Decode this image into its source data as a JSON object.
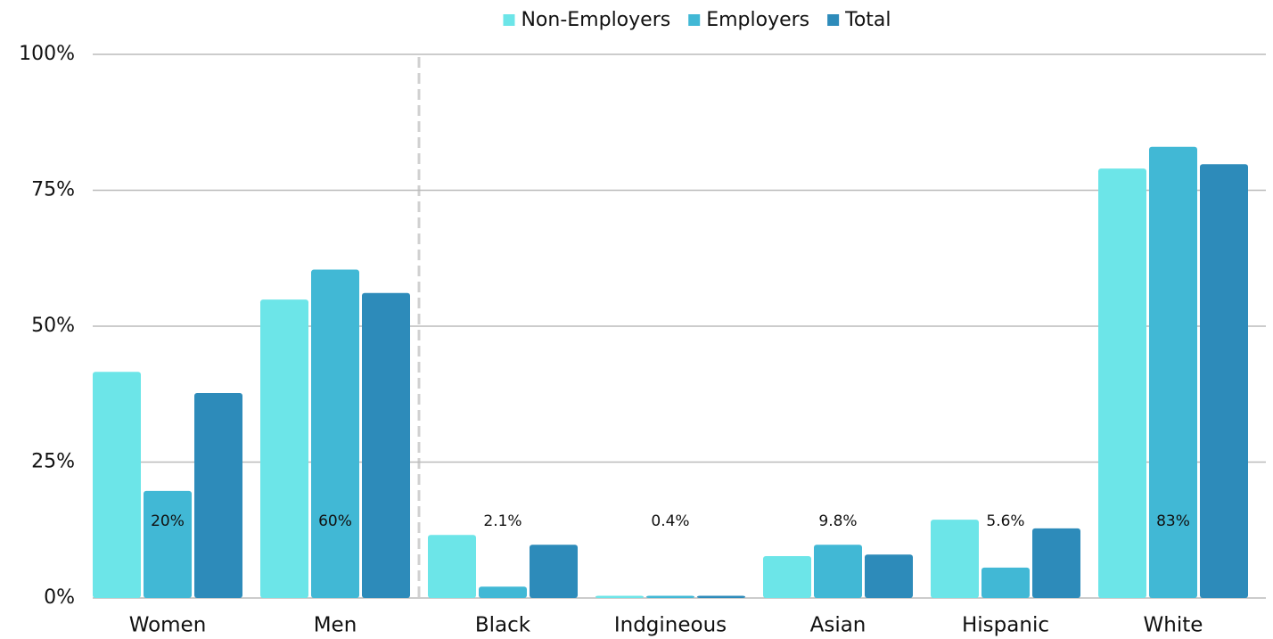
{
  "chart_data": {
    "type": "bar",
    "categories": [
      "Women",
      "Men",
      "Black",
      "Indgineous",
      "Asian",
      "Hispanic",
      "White"
    ],
    "series": [
      {
        "name": "Non-Employers",
        "color": "#6ce5e8",
        "values": [
          41.6,
          54.9,
          11.6,
          0.4,
          7.7,
          14.4,
          79.0
        ]
      },
      {
        "name": "Employers",
        "color": "#41b8d5",
        "values": [
          19.7,
          60.4,
          2.1,
          0.4,
          9.8,
          5.6,
          83
        ],
        "value_labels": [
          "20%",
          "60%",
          "2.1%",
          "0.4%",
          "9.8%",
          "5.6%",
          "83%"
        ]
      },
      {
        "name": "Total",
        "color": "#2d8bba",
        "values": [
          37.7,
          56.1,
          9.8,
          0.4,
          8.0,
          12.8,
          79.8
        ]
      }
    ],
    "ylim": [
      0,
      100
    ],
    "yticks": [
      {
        "value": 0,
        "label": "0%"
      },
      {
        "value": 25,
        "label": "25%"
      },
      {
        "value": 50,
        "label": "50%"
      },
      {
        "value": 75,
        "label": "75%"
      },
      {
        "value": 100,
        "label": "100%"
      }
    ],
    "grid": true,
    "legend": "top"
  }
}
